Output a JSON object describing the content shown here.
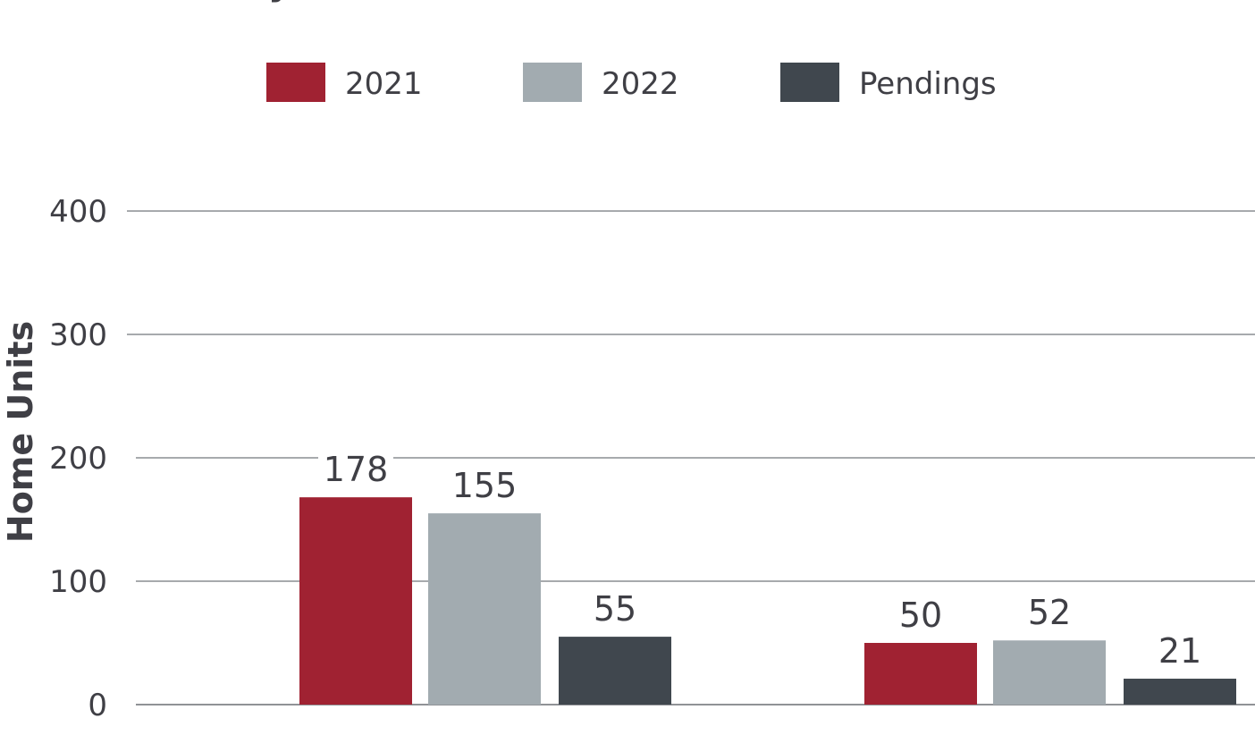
{
  "chart_data": {
    "type": "bar",
    "title_fragment": "y",
    "ylabel": "Home Units",
    "ylim": [
      0,
      400
    ],
    "yticks": [
      0,
      100,
      200,
      300,
      400
    ],
    "grid": true,
    "legend_position": "top",
    "categories": [
      "",
      ""
    ],
    "series": [
      {
        "name": "2021",
        "color": "#a02232",
        "values": [
          178,
          50
        ]
      },
      {
        "name": "2022",
        "color": "#a2abb0",
        "values": [
          155,
          52
        ]
      },
      {
        "name": "Pendings",
        "color": "#40474e",
        "values": [
          55,
          21
        ]
      }
    ]
  }
}
